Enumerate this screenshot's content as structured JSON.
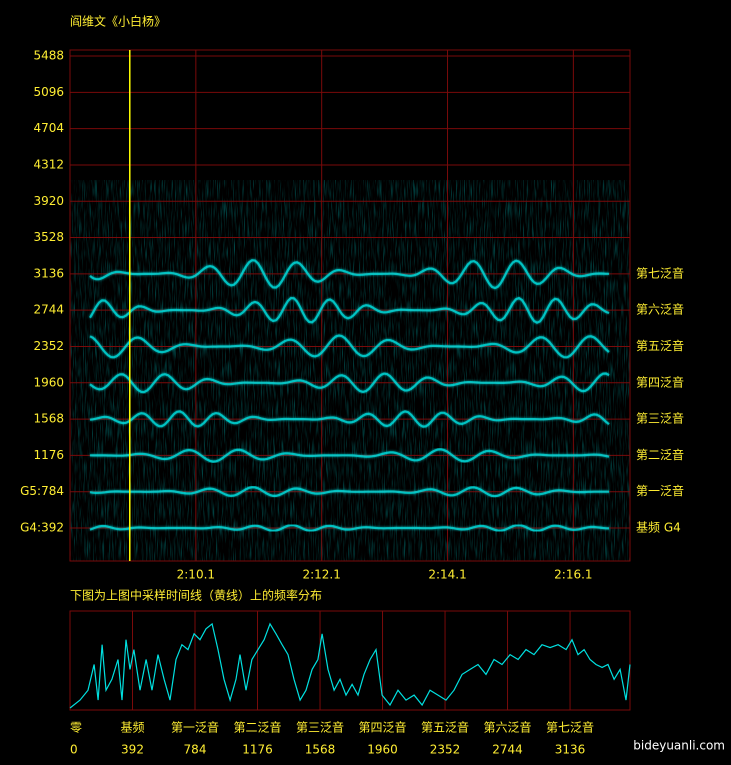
{
  "chart_data": [
    {
      "type": "spectrogram",
      "title": "阎维文《小白杨》",
      "xlim": [
        128.1,
        137.0
      ],
      "xticks": [
        {
          "value": 130.1,
          "label": "2:10.1"
        },
        {
          "value": 132.1,
          "label": "2:12.1"
        },
        {
          "value": 134.1,
          "label": "2:14.1"
        },
        {
          "value": 136.1,
          "label": "2:16.1"
        }
      ],
      "ylim": [
        36,
        5553
      ],
      "yticks": [
        {
          "value": 392,
          "label": "G4:392"
        },
        {
          "value": 784,
          "label": "G5:784"
        },
        1176,
        1568,
        1960,
        2352,
        2744,
        3136,
        3528,
        3920,
        4312,
        4704,
        5096,
        5488
      ],
      "grid": true,
      "color": "#00e0e0",
      "cursor": {
        "x": 129.05,
        "color": "#ffff00"
      },
      "annotations": [
        {
          "text": "基频 G4",
          "value": 392
        },
        {
          "text": "第一泛音",
          "value": 784
        },
        {
          "text": "第二泛音",
          "value": 1176
        },
        {
          "text": "第三泛音",
          "value": 1568
        },
        {
          "text": "第四泛音",
          "value": 1960
        },
        {
          "text": "第五泛音",
          "value": 2352
        },
        {
          "text": "第六泛音",
          "value": 2744
        },
        {
          "text": "第七泛音",
          "value": 3136
        }
      ]
    },
    {
      "type": "line",
      "title": "下图为上图中采样时间线（黄线）上的频率分布",
      "x": [
        0,
        63,
        113,
        151,
        176,
        201,
        226,
        263,
        301,
        326,
        351,
        376,
        401,
        439,
        477,
        514,
        552,
        590,
        627,
        665,
        702,
        740,
        778,
        815,
        853,
        891,
        928,
        966,
        1004,
        1041,
        1066,
        1104,
        1141,
        1179,
        1217,
        1254,
        1292,
        1330,
        1367,
        1405,
        1443,
        1480,
        1518,
        1555,
        1581,
        1618,
        1656,
        1693,
        1731,
        1769,
        1806,
        1844,
        1882,
        1919,
        1957,
        2007,
        2057,
        2107,
        2158,
        2208,
        2258,
        2308,
        2358,
        2408,
        2459,
        2509,
        2559,
        2609,
        2659,
        2709,
        2760,
        2810,
        2860,
        2910,
        2960,
        3011,
        3061,
        3111,
        3148,
        3186,
        3224,
        3261,
        3299,
        3337,
        3374,
        3412,
        3450,
        3487,
        3512
      ],
      "values": [
        2,
        10,
        20,
        46,
        10,
        66,
        20,
        31,
        51,
        10,
        71,
        41,
        61,
        20,
        51,
        20,
        56,
        31,
        10,
        51,
        66,
        61,
        77,
        71,
        82,
        87,
        61,
        31,
        10,
        31,
        56,
        20,
        51,
        61,
        71,
        87,
        77,
        66,
        56,
        31,
        10,
        20,
        41,
        51,
        77,
        41,
        20,
        31,
        15,
        26,
        15,
        36,
        51,
        61,
        15,
        5,
        20,
        10,
        15,
        5,
        20,
        15,
        10,
        20,
        36,
        41,
        46,
        36,
        51,
        46,
        56,
        51,
        61,
        56,
        66,
        63,
        66,
        61,
        71,
        56,
        61,
        51,
        46,
        43,
        46,
        31,
        41,
        10,
        46
      ],
      "color": "#00e0e0",
      "xlim": [
        0,
        3512
      ],
      "ylim": [
        0,
        100
      ],
      "xticks": [
        0,
        392,
        784,
        1176,
        1568,
        1960,
        2352,
        2744,
        3136
      ],
      "xtick_names": [
        "零",
        "基频",
        "第一泛音",
        "第二泛音",
        "第三泛音",
        "第四泛音",
        "第五泛音",
        "第六泛音",
        "第七泛音"
      ],
      "grid": true
    }
  ],
  "watermark": "bideyuanli.com"
}
